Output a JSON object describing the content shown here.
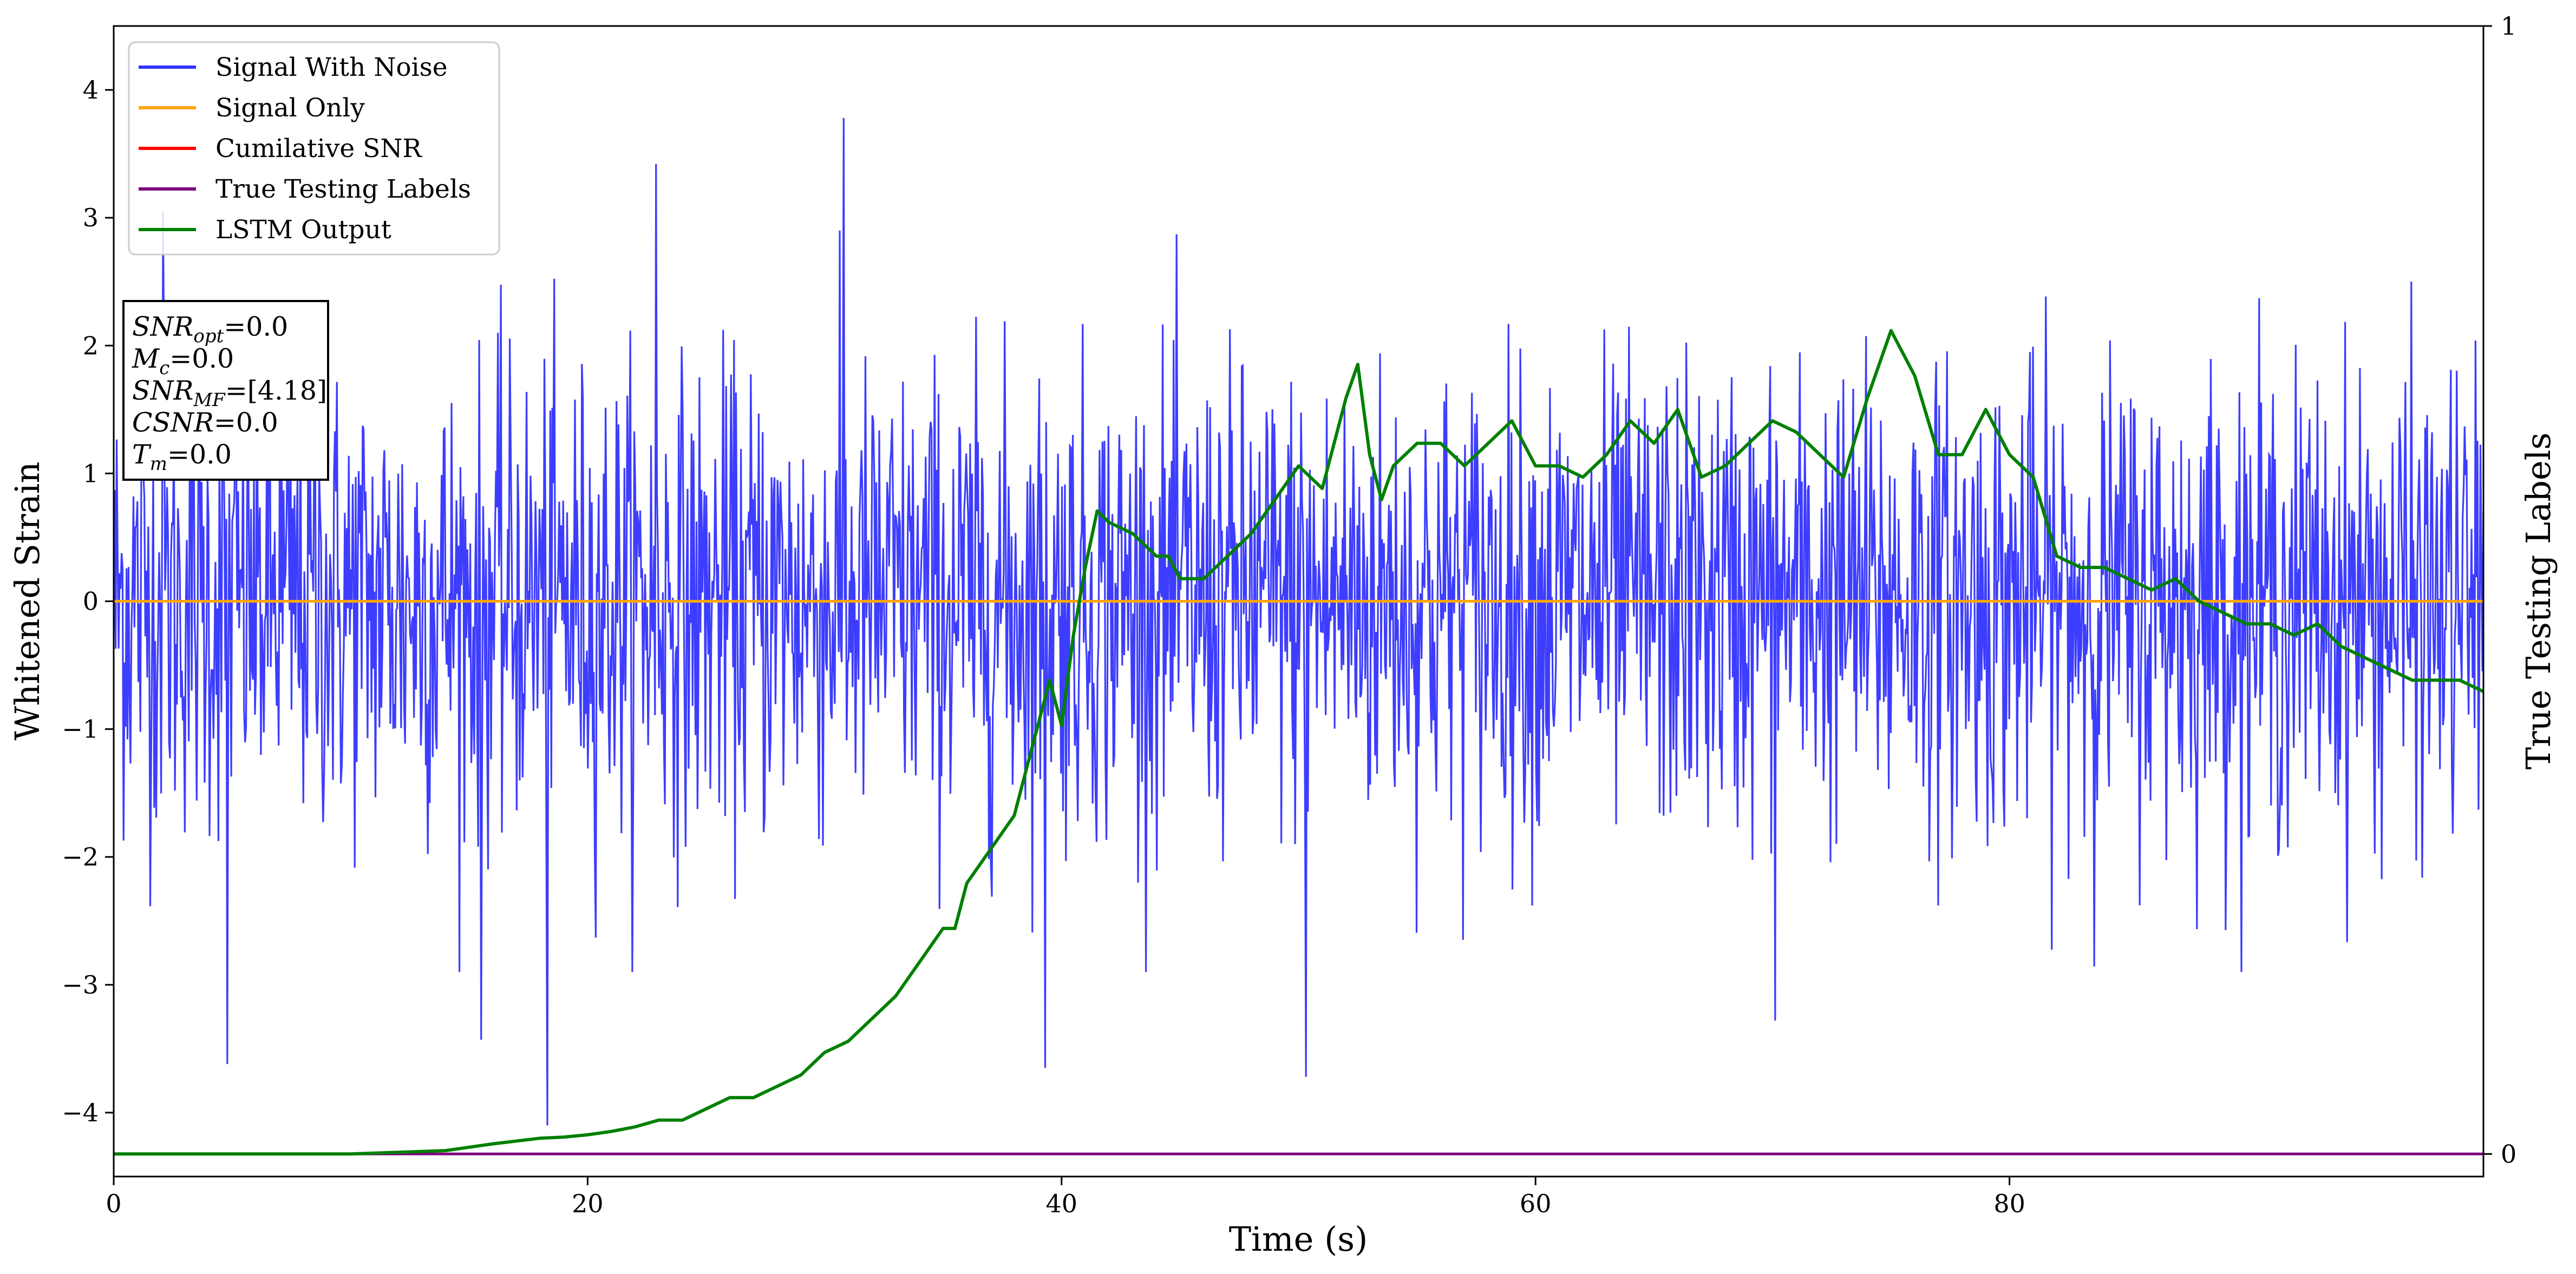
{
  "chart_data": {
    "type": "line",
    "title": "",
    "xlabel": "Time (s)",
    "ylabel": "Whitened Strain",
    "ylabel_right": "True Testing Labels",
    "xlim": [
      0,
      100
    ],
    "ylim": [
      -4.5,
      4.5
    ],
    "ylim_right": [
      -0.02,
      1.0
    ],
    "x_ticks": [
      0,
      20,
      40,
      60,
      80
    ],
    "x_tick_labels": [
      "0",
      "20",
      "40",
      "60",
      "80"
    ],
    "y_ticks": [
      -4,
      -3,
      -2,
      -1,
      0,
      1,
      2,
      3,
      4
    ],
    "y_tick_labels": [
      "−4",
      "−3",
      "−2",
      "−1",
      "0",
      "1",
      "2",
      "3",
      "4"
    ],
    "y_right_ticks": [
      0,
      1
    ],
    "y_right_tick_labels": [
      "0",
      "1"
    ],
    "grid": false,
    "legend_placement": "top-left",
    "series": [
      {
        "name": "Signal With Noise",
        "color": "#3333ff",
        "axis": "left",
        "kind": "noise",
        "sample_count": 2400,
        "typical_range": [
          -2.0,
          2.0
        ],
        "peaks": [
          {
            "x": 30.8,
            "y": 3.78
          },
          {
            "x": 22.9,
            "y": 3.42
          },
          {
            "x": 2.1,
            "y": 3.05
          },
          {
            "x": 18.3,
            "y": -4.1
          },
          {
            "x": 50.3,
            "y": -3.72
          },
          {
            "x": 4.8,
            "y": -3.62
          },
          {
            "x": 39.3,
            "y": -3.65
          },
          {
            "x": 70.1,
            "y": -3.28
          },
          {
            "x": 15.5,
            "y": -3.43
          }
        ]
      },
      {
        "name": "Signal Only",
        "color": "#ffa500",
        "axis": "left",
        "x": [
          0,
          100
        ],
        "y": [
          0.0,
          0.0
        ]
      },
      {
        "name": "Cumilative SNR",
        "color": "#ff0000",
        "axis": "left",
        "x": [],
        "y": []
      },
      {
        "name": "True Testing Labels",
        "color": "#800080",
        "axis": "right",
        "x": [
          0,
          100
        ],
        "y": [
          0,
          0
        ]
      },
      {
        "name": "LSTM Output",
        "color": "#008000",
        "axis": "right",
        "x": [
          0,
          10,
          14,
          16,
          18,
          19,
          20,
          21,
          22,
          23,
          24,
          25,
          26,
          27,
          28,
          29,
          30,
          30.5,
          31,
          32,
          33,
          34,
          35,
          35.5,
          36,
          37,
          38,
          39,
          39.5,
          40,
          40.5,
          41,
          41.5,
          42,
          43,
          44,
          44.5,
          45,
          46,
          47,
          48,
          49,
          50,
          51,
          52,
          52.5,
          53,
          53.5,
          54,
          55,
          56,
          57,
          58,
          59,
          60,
          61,
          62,
          63,
          64,
          65,
          66,
          67,
          68,
          69,
          70,
          71,
          72,
          73,
          74,
          75,
          76,
          77,
          78,
          79,
          80,
          81,
          82,
          83,
          84,
          85,
          86,
          87,
          88,
          89,
          90,
          91,
          92,
          93,
          94,
          95,
          96,
          97,
          98,
          99,
          100
        ],
        "y": [
          0.0,
          0.0,
          0.003,
          0.009,
          0.014,
          0.015,
          0.017,
          0.02,
          0.024,
          0.03,
          0.03,
          0.04,
          0.05,
          0.05,
          0.06,
          0.07,
          0.09,
          0.095,
          0.1,
          0.12,
          0.14,
          0.17,
          0.2,
          0.2,
          0.24,
          0.27,
          0.3,
          0.38,
          0.42,
          0.38,
          0.46,
          0.52,
          0.57,
          0.56,
          0.55,
          0.53,
          0.53,
          0.51,
          0.51,
          0.53,
          0.55,
          0.58,
          0.61,
          0.59,
          0.67,
          0.7,
          0.62,
          0.58,
          0.61,
          0.63,
          0.63,
          0.61,
          0.63,
          0.65,
          0.61,
          0.61,
          0.6,
          0.62,
          0.65,
          0.63,
          0.66,
          0.6,
          0.61,
          0.63,
          0.65,
          0.64,
          0.62,
          0.6,
          0.67,
          0.73,
          0.69,
          0.62,
          0.62,
          0.66,
          0.62,
          0.6,
          0.53,
          0.52,
          0.52,
          0.51,
          0.5,
          0.51,
          0.49,
          0.48,
          0.47,
          0.47,
          0.46,
          0.47,
          0.45,
          0.44,
          0.43,
          0.42,
          0.42,
          0.42,
          0.41
        ]
      }
    ],
    "annotation_box": [
      {
        "symbol": "SNR",
        "sub": "opt",
        "value": "=0.0"
      },
      {
        "symbol": "M",
        "sub": "c",
        "value": "=0.0"
      },
      {
        "symbol": "SNR",
        "sub": "MF",
        "value": "=[4.18]"
      },
      {
        "symbol": "CSNR",
        "sub": "",
        "value": "=0.0"
      },
      {
        "symbol": "T",
        "sub": "m",
        "value": "=0.0"
      }
    ]
  }
}
